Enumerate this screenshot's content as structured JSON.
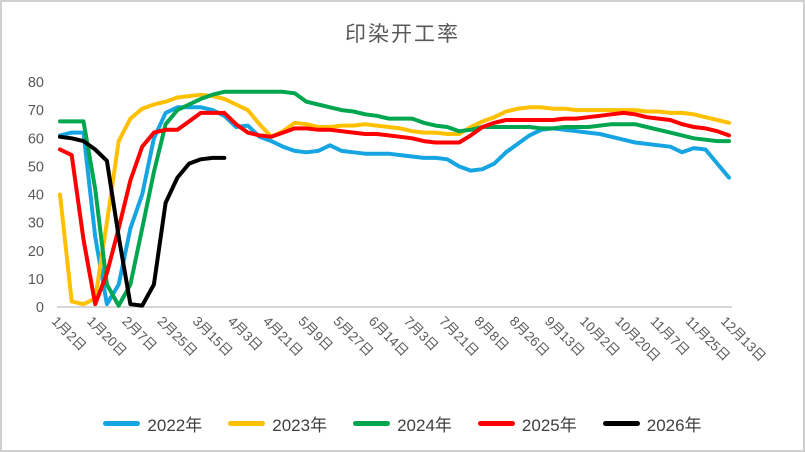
{
  "title": "印染开工率",
  "colors": {
    "axis_text": "#595959",
    "title_text": "#595959",
    "legend_text": "#404040",
    "axis_line": "#d6d6d6",
    "background": "#ffffff"
  },
  "chart_data": {
    "type": "line",
    "title": "印染开工率",
    "xlabel": "",
    "ylabel": "",
    "ylim": [
      0,
      80
    ],
    "y_ticks": [
      0,
      10,
      20,
      30,
      40,
      50,
      60,
      70,
      80
    ],
    "grid": false,
    "legend_position": "bottom",
    "x_tick_labels": [
      "1月2日",
      "1月20日",
      "2月7日",
      "2月25日",
      "3月15日",
      "4月3日",
      "4月21日",
      "5月9日",
      "5月27日",
      "6月14日",
      "7月3日",
      "7月21日",
      "8月8日",
      "8月26日",
      "9月13日",
      "10月2日",
      "10月20日",
      "11月7日",
      "11月25日",
      "12月13日"
    ],
    "points_per_series": 58,
    "tick_every_n_points": 3,
    "series": [
      {
        "name": "2022年",
        "color": "#16A5E2",
        "values": [
          61,
          62,
          62,
          25,
          1,
          8,
          28,
          40,
          60,
          69,
          71,
          71,
          71,
          70,
          68,
          64,
          64.5,
          60.5,
          59,
          57,
          55.5,
          55,
          55.5,
          57.5,
          55.5,
          55,
          54.5,
          54.5,
          54.5,
          54,
          53.5,
          53,
          53,
          52.5,
          50,
          48.5,
          49,
          51,
          55,
          58,
          61,
          63,
          63.5,
          63,
          62.5,
          62,
          61.5,
          60.5,
          59.5,
          58.5,
          58,
          57.5,
          57,
          55,
          56.5,
          56,
          51,
          46
        ]
      },
      {
        "name": "2023年",
        "color": "#FFC000",
        "values": [
          40,
          2,
          1,
          3,
          30,
          59,
          67,
          70.5,
          72,
          73,
          74.5,
          75,
          75.5,
          75,
          74,
          72,
          70,
          65,
          60.5,
          62.5,
          65.5,
          65,
          64,
          64,
          64.5,
          64.5,
          65,
          64.5,
          64,
          63.5,
          62.5,
          62,
          62,
          61.5,
          61.5,
          64,
          66,
          67.5,
          69.5,
          70.5,
          71,
          71,
          70.5,
          70.5,
          70,
          70,
          70,
          70,
          70,
          70,
          69.5,
          69.5,
          69,
          69,
          68.5,
          67.5,
          66.5,
          65.5
        ]
      },
      {
        "name": "2024年",
        "color": "#00A64F",
        "values": [
          66,
          66,
          66,
          42,
          8,
          0.5,
          8,
          28,
          48,
          65,
          70,
          72,
          74,
          75.5,
          76.5,
          76.5,
          76.5,
          76.5,
          76.5,
          76.5,
          76,
          73,
          72,
          71,
          70,
          69.5,
          68.5,
          68,
          67,
          67,
          67,
          65.5,
          64.5,
          64,
          62.5,
          63,
          64,
          64,
          64,
          64,
          64,
          63.5,
          63.5,
          64,
          64,
          64,
          64.5,
          65,
          65,
          65,
          64,
          63,
          62,
          61,
          60,
          59.5,
          59,
          59
        ]
      },
      {
        "name": "2025年",
        "color": "#FF0000",
        "values": [
          56,
          54,
          24,
          1,
          12,
          28,
          45,
          57,
          62,
          63,
          63,
          66,
          69,
          69,
          69,
          65,
          62,
          61,
          60.5,
          62,
          63.5,
          63.5,
          63,
          63,
          62.5,
          62,
          61.5,
          61.5,
          61,
          60.5,
          60,
          59,
          58.5,
          58.5,
          58.5,
          61,
          64,
          65.5,
          66.5,
          66.5,
          66.5,
          66.5,
          66.5,
          67,
          67,
          67.5,
          68,
          68.5,
          69,
          68.5,
          67.5,
          67,
          66.5,
          65,
          64,
          63.5,
          62.5,
          61
        ]
      },
      {
        "name": "2026年",
        "color": "#000000",
        "values": [
          60.5,
          60,
          59,
          56,
          52,
          25,
          1,
          0.5,
          8,
          37,
          46,
          51,
          52.5,
          53,
          53,
          null,
          null,
          null,
          null,
          null,
          null,
          null,
          null,
          null,
          null,
          null,
          null,
          null,
          null,
          null,
          null,
          null,
          null,
          null,
          null,
          null,
          null,
          null,
          null,
          null,
          null,
          null,
          null,
          null,
          null,
          null,
          null,
          null,
          null,
          null,
          null,
          null,
          null,
          null,
          null,
          null,
          null,
          null
        ]
      }
    ]
  }
}
